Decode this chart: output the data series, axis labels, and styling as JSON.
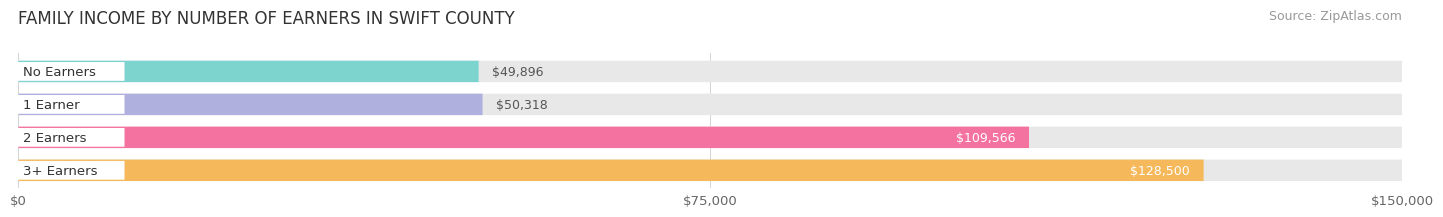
{
  "title": "FAMILY INCOME BY NUMBER OF EARNERS IN SWIFT COUNTY",
  "source": "Source: ZipAtlas.com",
  "categories": [
    "No Earners",
    "1 Earner",
    "2 Earners",
    "3+ Earners"
  ],
  "values": [
    49896,
    50318,
    109566,
    128500
  ],
  "bar_colors": [
    "#7dd4ce",
    "#b0b0df",
    "#f472a0",
    "#f5b85a"
  ],
  "bar_bg_color": "#e8e8e8",
  "value_labels": [
    "$49,896",
    "$50,318",
    "$109,566",
    "$128,500"
  ],
  "label_inside": [
    false,
    false,
    true,
    true
  ],
  "xlim": [
    0,
    150000
  ],
  "xticks": [
    0,
    75000,
    150000
  ],
  "xtick_labels": [
    "$0",
    "$75,000",
    "$150,000"
  ],
  "title_fontsize": 12,
  "source_fontsize": 9,
  "tick_fontsize": 9.5,
  "bar_label_fontsize": 9,
  "cat_label_fontsize": 9.5,
  "background_color": "#ffffff"
}
